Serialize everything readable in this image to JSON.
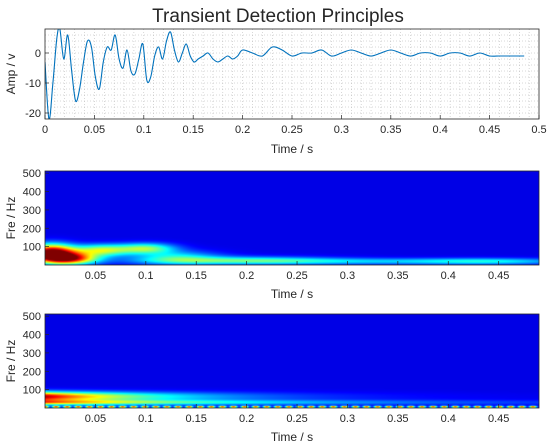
{
  "chart_data": [
    {
      "type": "line",
      "title": "Transient Detection Principles",
      "xlabel": "Time / s",
      "ylabel": "Amp / v",
      "xlim": [
        0,
        0.5
      ],
      "ylim": [
        -22,
        8
      ],
      "xticks": [
        "0",
        "0.05",
        "0.1",
        "0.15",
        "0.2",
        "0.25",
        "0.3",
        "0.35",
        "0.4",
        "0.45",
        "0.5"
      ],
      "yticks": [
        "-20",
        "-10",
        "0"
      ],
      "grid": true,
      "color": "#0072bd",
      "series": [
        {
          "x": [
            0,
            0.004,
            0.008,
            0.012,
            0.015,
            0.019,
            0.023,
            0.027,
            0.031,
            0.035,
            0.039,
            0.043,
            0.047,
            0.051,
            0.055,
            0.059,
            0.063,
            0.067,
            0.071,
            0.075,
            0.079,
            0.083,
            0.087,
            0.091,
            0.095,
            0.099,
            0.103,
            0.107,
            0.111,
            0.115,
            0.119,
            0.123,
            0.127,
            0.131,
            0.135,
            0.139,
            0.143,
            0.147,
            0.151,
            0.155,
            0.16,
            0.165,
            0.17,
            0.175,
            0.18,
            0.185,
            0.19,
            0.195,
            0.2,
            0.21,
            0.22,
            0.23,
            0.24,
            0.25,
            0.26,
            0.27,
            0.28,
            0.29,
            0.3,
            0.31,
            0.32,
            0.33,
            0.34,
            0.35,
            0.36,
            0.37,
            0.38,
            0.39,
            0.4,
            0.41,
            0.42,
            0.43,
            0.44,
            0.45,
            0.46,
            0.47,
            0.48,
            0.485
          ],
          "y": [
            -3,
            -22,
            -10,
            5,
            8,
            -2,
            6,
            -6,
            -16,
            -12,
            -3,
            4,
            2,
            -8,
            -12,
            -3,
            2,
            1,
            6,
            -2,
            -5,
            1,
            -6,
            -7,
            -2,
            3,
            -9,
            -8,
            -1,
            2,
            -2,
            4,
            7,
            1,
            -3,
            0,
            3,
            -1,
            -3,
            -2,
            -1,
            0,
            -2,
            -3,
            -2,
            -1,
            -2,
            -1,
            1,
            0,
            -1,
            2,
            1,
            -1,
            0,
            0,
            1,
            -1,
            0,
            1,
            0,
            -1,
            0,
            1,
            0,
            -1,
            0,
            0,
            -1,
            0,
            0,
            -1,
            0,
            -1,
            -1,
            -1,
            -1,
            -1
          ]
        }
      ]
    },
    {
      "type": "heatmap",
      "xlabel": "Time / s",
      "ylabel": "Fre / Hz",
      "xlim": [
        0,
        0.49
      ],
      "ylim": [
        0,
        512
      ],
      "xticks": [
        "0.05",
        "0.1",
        "0.15",
        "0.2",
        "0.25",
        "0.3",
        "0.35",
        "0.4",
        "0.45"
      ],
      "yticks": [
        "100",
        "200",
        "300",
        "400",
        "500"
      ],
      "colormap": "jet",
      "blobs": [
        {
          "t": 0.006,
          "f": 70,
          "st": 0.016,
          "sf": 30,
          "a": 1.0
        },
        {
          "t": 0.022,
          "f": 35,
          "st": 0.02,
          "sf": 22,
          "a": 0.9
        },
        {
          "t": 0.055,
          "f": 80,
          "st": 0.02,
          "sf": 22,
          "a": 0.5
        },
        {
          "t": 0.1,
          "f": 90,
          "st": 0.02,
          "sf": 20,
          "a": 0.45
        },
        {
          "t": 0.13,
          "f": 40,
          "st": 0.03,
          "sf": 25,
          "a": 0.3
        },
        {
          "t": 0.2,
          "f": 25,
          "st": 0.06,
          "sf": 15,
          "a": 0.3
        },
        {
          "t": 0.32,
          "f": 20,
          "st": 0.12,
          "sf": 12,
          "a": 0.22
        },
        {
          "t": 0.44,
          "f": 20,
          "st": 0.05,
          "sf": 12,
          "a": 0.2
        }
      ]
    },
    {
      "type": "heatmap",
      "xlabel": "Time / s",
      "ylabel": "Fre / Hz",
      "xlim": [
        0,
        0.49
      ],
      "ylim": [
        0,
        512
      ],
      "xticks": [
        "0.05",
        "0.1",
        "0.15",
        "0.2",
        "0.25",
        "0.3",
        "0.35",
        "0.4",
        "0.45"
      ],
      "yticks": [
        "100",
        "200",
        "300",
        "400",
        "500"
      ],
      "colormap": "jet",
      "bands": [
        {
          "f": 62,
          "sf": 18,
          "a0": 0.95,
          "decay": 0.11
        },
        {
          "f": 30,
          "sf": 10,
          "a0": 0.6,
          "decay": 0.25
        }
      ],
      "bottom_band": {
        "f": 6,
        "sf": 4,
        "a0": 0.85,
        "decay": 10
      }
    }
  ]
}
